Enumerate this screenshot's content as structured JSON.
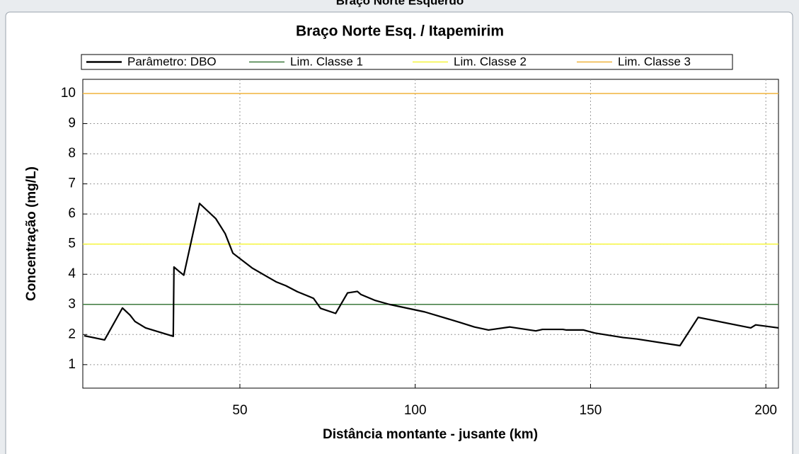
{
  "window_title": "Braço Norte Esquerdo",
  "chart_data": {
    "type": "line",
    "title": "Braço Norte Esq. / Itapemirim",
    "xlabel": "Distância montante - jusante (km)",
    "ylabel": "Concentração (mg/L)",
    "xlim": [
      5.2,
      203.6
    ],
    "xticks": [
      50,
      100,
      150,
      200
    ],
    "ylim": [
      0.22,
      10.47
    ],
    "yticks": [
      1,
      2,
      3,
      4,
      5,
      6,
      7,
      8,
      9,
      10
    ],
    "grid": true,
    "series": [
      {
        "name": "Parâmetro: DBO",
        "color": "#000000",
        "x": [
          5.6,
          11.4,
          16.5,
          18.7,
          20.1,
          23.1,
          31.0,
          31.2,
          32.6,
          34.0,
          38.5,
          43.1,
          45.8,
          48.0,
          53.6,
          60.3,
          63.1,
          66.4,
          70.0,
          71.0,
          73.0,
          77.3,
          80.7,
          83.5,
          84.5,
          88.6,
          92.6,
          102.7,
          112.8,
          116.9,
          120.9,
          127.0,
          134.4,
          136.3,
          142.1,
          143.1,
          148.0,
          151.2,
          159.3,
          163.3,
          175.5,
          180.7,
          195.7,
          197.1,
          203.6
        ],
        "values": [
          1.96,
          1.82,
          2.88,
          2.64,
          2.43,
          2.22,
          1.94,
          4.24,
          4.1,
          3.97,
          6.35,
          5.85,
          5.35,
          4.7,
          4.2,
          3.75,
          3.62,
          3.42,
          3.25,
          3.2,
          2.87,
          2.7,
          3.38,
          3.43,
          3.33,
          3.13,
          3.0,
          2.75,
          2.4,
          2.25,
          2.15,
          2.25,
          2.12,
          2.17,
          2.17,
          2.15,
          2.15,
          2.05,
          1.9,
          1.85,
          1.63,
          2.57,
          2.22,
          2.32,
          2.22
        ]
      },
      {
        "name": "Lim. Classe 1",
        "color": "#3c7a3c",
        "values": [
          3
        ]
      },
      {
        "name": "Lim. Classe 2",
        "color": "#f5f53a",
        "values": [
          5
        ]
      },
      {
        "name": "Lim. Classe 3",
        "color": "#f0b43c",
        "values": [
          10
        ]
      }
    ]
  }
}
